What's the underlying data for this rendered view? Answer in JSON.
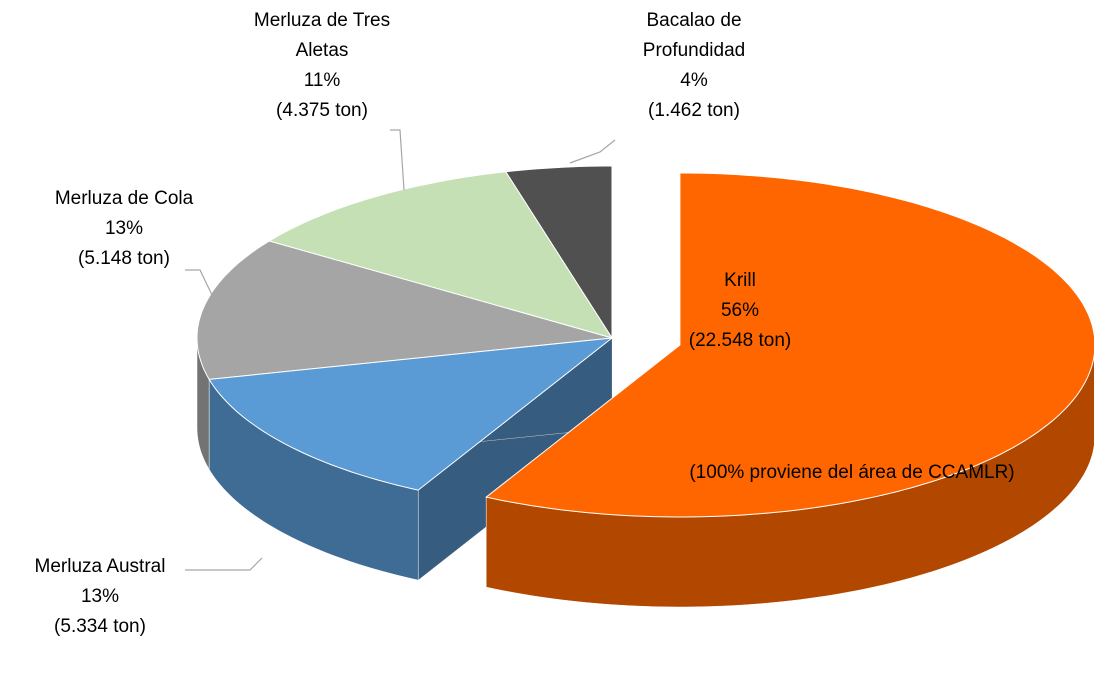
{
  "chart_data": {
    "type": "pie",
    "categories": [
      "Krill",
      "Merluza Austral",
      "Merluza de Cola",
      "Merluza de Tres Aletas",
      "Bacalao de Profundidad"
    ],
    "values": [
      56,
      13,
      13,
      11,
      4
    ],
    "value_labels": [
      "56%",
      "13%",
      "13%",
      "11%",
      "4%"
    ],
    "tonnage_labels": [
      "(22.548 ton)",
      "(5.334 ton)",
      "(5.148 ton)",
      "(4.375 ton)",
      "(1.462 ton)"
    ],
    "colors": [
      "#ff6600",
      "#5b9bd5",
      "#a5a5a5",
      "#c5e0b4",
      "#505050"
    ],
    "exploded": "Krill",
    "annotation": "(100% proviene del área de CCAMLR)"
  }
}
